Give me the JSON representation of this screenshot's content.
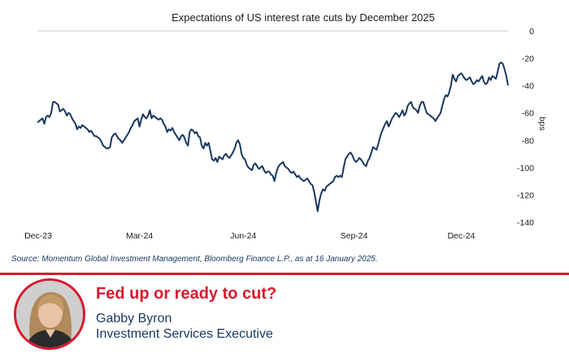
{
  "chart_data": {
    "type": "line",
    "title": "Expectations of US interest rate cuts by December 2025",
    "ylabel": "bps",
    "xlabel": "",
    "ylim": [
      -140,
      0
    ],
    "yticks": [
      0,
      -20,
      -40,
      -60,
      -80,
      -100,
      -120,
      -140
    ],
    "x_tick_labels": [
      "Dec-23",
      "Mar-24",
      "Jun-24",
      "Sep-24",
      "Dec-24"
    ],
    "x_tick_index": [
      0,
      59,
      119,
      183,
      245
    ],
    "grid": true,
    "legend": "none",
    "series": [
      {
        "name": "Expected cuts by Dec 2025 (bps)",
        "values": [
          -67,
          -66,
          -65,
          -64,
          -68,
          -63,
          -62,
          -63,
          -60,
          -52,
          -52,
          -53,
          -54,
          -59,
          -58,
          -57,
          -59,
          -62,
          -60,
          -61,
          -64,
          -66,
          -68,
          -72,
          -70,
          -71,
          -69,
          -70,
          -71,
          -72,
          -74,
          -73,
          -75,
          -77,
          -77,
          -78,
          -79,
          -81,
          -84,
          -85,
          -86,
          -86,
          -85,
          -78,
          -76,
          -75,
          -77,
          -79,
          -80,
          -82,
          -80,
          -78,
          -76,
          -74,
          -71,
          -69,
          -66,
          -65,
          -64,
          -70,
          -65,
          -61,
          -63,
          -64,
          -62,
          -58,
          -64,
          -62,
          -63,
          -64,
          -65,
          -64,
          -65,
          -68,
          -70,
          -74,
          -72,
          -73,
          -71,
          -74,
          -76,
          -78,
          -80,
          -77,
          -76,
          -78,
          -82,
          -84,
          -74,
          -72,
          -73,
          -75,
          -74,
          -77,
          -78,
          -84,
          -86,
          -82,
          -84,
          -82,
          -88,
          -94,
          -95,
          -93,
          -96,
          -92,
          -93,
          -94,
          -91,
          -90,
          -92,
          -93,
          -91,
          -89,
          -86,
          -82,
          -80,
          -83,
          -90,
          -93,
          -94,
          -98,
          -100,
          -101,
          -102,
          -98,
          -97,
          -99,
          -101,
          -100,
          -99,
          -102,
          -104,
          -103,
          -103,
          -105,
          -106,
          -110,
          -104,
          -100,
          -98,
          -97,
          -96,
          -99,
          -100,
          -101,
          -103,
          -104,
          -103,
          -105,
          -107,
          -106,
          -108,
          -109,
          -110,
          -109,
          -108,
          -110,
          -112,
          -113,
          -118,
          -125,
          -132,
          -124,
          -119,
          -116,
          -117,
          -114,
          -113,
          -112,
          -111,
          -110,
          -107,
          -106,
          -107,
          -106,
          -107,
          -100,
          -94,
          -92,
          -90,
          -89,
          -91,
          -94,
          -96,
          -95,
          -93,
          -94,
          -96,
          -98,
          -99,
          -95,
          -93,
          -89,
          -85,
          -86,
          -87,
          -83,
          -78,
          -74,
          -71,
          -68,
          -66,
          -70,
          -67,
          -64,
          -62,
          -60,
          -61,
          -63,
          -61,
          -58,
          -62,
          -60,
          -55,
          -53,
          -52,
          -56,
          -57,
          -58,
          -60,
          -55,
          -52,
          -52,
          -56,
          -60,
          -61,
          -62,
          -63,
          -64,
          -66,
          -64,
          -62,
          -60,
          -55,
          -50,
          -47,
          -48,
          -45,
          -40,
          -32,
          -35,
          -37,
          -33,
          -32,
          -31,
          -33,
          -35,
          -36,
          -35,
          -34,
          -37,
          -39,
          -38,
          -36,
          -37,
          -35,
          -33,
          -37,
          -39,
          -38,
          -34,
          -36,
          -33,
          -34,
          -35,
          -30,
          -24,
          -23,
          -24,
          -28,
          -33,
          -40
        ]
      }
    ]
  },
  "source": "Source: Momentum Global Investment Management, Bloomberg Finance L.P., as at 16 January 2025.",
  "footer": {
    "headline": "Fed up or ready to cut?",
    "name": "Gabby Byron",
    "role": "Investment Services Executive"
  },
  "colors": {
    "line": "#17375e",
    "grid": "#c9c9c9",
    "accent": "#d7192f",
    "source_text": "#17375e",
    "footer_text": "#17375e"
  },
  "icons": {
    "avatar": "person-portrait-icon"
  }
}
